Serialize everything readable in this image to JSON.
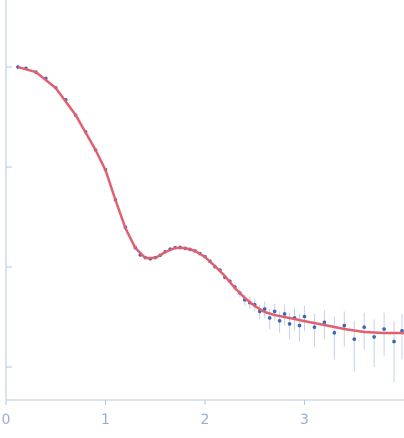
{
  "chart_data": {
    "type": "scatter",
    "yscale": "log",
    "xlim": [
      0,
      4
    ],
    "xticks": [
      0,
      1,
      2,
      3
    ],
    "ylim": [
      0.000468,
      4.68
    ],
    "yticks": [
      {
        "value": 1,
        "label": null
      },
      {
        "value": 0.1,
        "label": null
      },
      {
        "value": 0.01,
        "label": null
      },
      {
        "value": 0.001,
        "label": null
      }
    ],
    "series": [
      {
        "type": "scatter",
        "color": "#3b64b6",
        "error_color": "#c3d0ec",
        "x": [
          0.12,
          0.2,
          0.3,
          0.4,
          0.5,
          0.6,
          0.7,
          0.8,
          0.9,
          1.0,
          1.1,
          1.2,
          1.3,
          1.35,
          1.4,
          1.45,
          1.5,
          1.55,
          1.6,
          1.65,
          1.7,
          1.75,
          1.8,
          1.85,
          1.9,
          1.95,
          2.0,
          2.05,
          2.1,
          2.15,
          2.2,
          2.25,
          2.3,
          2.35,
          2.4,
          2.45,
          2.5,
          2.55,
          2.6,
          2.65,
          2.7,
          2.75,
          2.8,
          2.85,
          2.9,
          2.95,
          3.0,
          3.1,
          3.2,
          3.3,
          3.4,
          3.5,
          3.6,
          3.7,
          3.8,
          3.9,
          3.98
        ],
        "values": [
          1.0,
          0.97,
          0.89,
          0.77,
          0.62,
          0.47,
          0.33,
          0.225,
          0.148,
          0.094,
          0.047,
          0.025,
          0.0156,
          0.0132,
          0.0124,
          0.0121,
          0.0124,
          0.0131,
          0.0142,
          0.0151,
          0.0156,
          0.0157,
          0.0154,
          0.015,
          0.0145,
          0.0136,
          0.0127,
          0.0114,
          0.0101,
          0.0093,
          0.0079,
          0.0072,
          0.0063,
          0.0055,
          0.0047,
          0.0044,
          0.0042,
          0.0036,
          0.0038,
          0.0031,
          0.0036,
          0.0029,
          0.0034,
          0.0027,
          0.0031,
          0.0026,
          0.0032,
          0.0025,
          0.0028,
          0.0022,
          0.0026,
          0.0019,
          0.0025,
          0.002,
          0.0024,
          0.0018,
          0.0023
        ],
        "errors": [
          0.005,
          0.005,
          0.005,
          0.004,
          0.004,
          0.003,
          0.003,
          0.002,
          0.002,
          0.0015,
          0.001,
          0.0008,
          0.0006,
          0.0005,
          0.0005,
          0.0005,
          0.0005,
          0.0005,
          0.0005,
          0.0005,
          0.0005,
          0.0005,
          0.0005,
          0.0005,
          0.0005,
          0.0005,
          0.0005,
          0.0005,
          0.0005,
          0.0005,
          0.0005,
          0.0005,
          0.0005,
          0.0005,
          0.0006,
          0.0006,
          0.0006,
          0.0006,
          0.0007,
          0.0007,
          0.0007,
          0.0007,
          0.0008,
          0.0008,
          0.0008,
          0.0008,
          0.0009,
          0.0009,
          0.0009,
          0.001,
          0.001,
          0.001,
          0.001,
          0.001,
          0.0011,
          0.0011,
          0.0011
        ]
      },
      {
        "type": "line",
        "color": "#e0606e",
        "x": [
          0.12,
          0.3,
          0.5,
          0.7,
          0.9,
          1.0,
          1.1,
          1.2,
          1.3,
          1.4,
          1.5,
          1.6,
          1.7,
          1.8,
          1.9,
          2.0,
          2.1,
          2.2,
          2.3,
          2.4,
          2.5,
          2.6,
          2.7,
          2.8,
          2.9,
          3.0,
          3.2,
          3.4,
          3.6,
          3.8,
          4.0
        ],
        "values": [
          1,
          0.891,
          0.617,
          0.331,
          0.148,
          0.0933,
          0.0468,
          0.0245,
          0.0155,
          0.0123,
          0.0123,
          0.0141,
          0.0155,
          0.0155,
          0.0145,
          0.0126,
          0.0102,
          0.00813,
          0.00617,
          0.0049,
          0.00407,
          0.00355,
          0.00331,
          0.00316,
          0.00302,
          0.00288,
          0.00263,
          0.0024,
          0.00224,
          0.00219,
          0.00219
        ]
      }
    ]
  }
}
